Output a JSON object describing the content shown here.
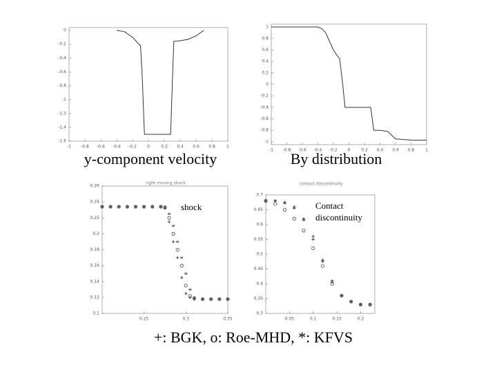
{
  "chart_data": [
    {
      "type": "line",
      "title": "y-component velocity",
      "color": "#333",
      "x": [
        -0.4,
        -0.3,
        -0.2,
        -0.12,
        -0.1,
        -0.08,
        -0.05,
        0,
        0.1,
        0.2,
        0.28,
        0.3,
        0.32,
        0.4,
        0.5,
        0.6,
        0.7
      ],
      "values": [
        0,
        -0.02,
        -0.1,
        -0.2,
        -0.22,
        -0.6,
        -1.5,
        -1.5,
        -1.5,
        -1.5,
        -1.5,
        -0.8,
        -0.16,
        -0.15,
        -0.13,
        -0.08,
        0
      ],
      "xlim": [
        -1,
        1
      ],
      "xticks": [
        -1,
        -0.8,
        -0.6,
        -0.4,
        -0.2,
        0,
        0.2,
        0.4,
        0.6,
        0.8,
        1
      ],
      "ylim": [
        -1.6,
        0.04
      ],
      "yticks": [
        0,
        -0.2,
        -0.4,
        -0.6,
        -0.8,
        -1,
        -1.2,
        -1.4,
        -1.6
      ]
    },
    {
      "type": "line",
      "title": "By distribution",
      "color": "#333",
      "x": [
        -1,
        -0.4,
        -0.35,
        -0.3,
        -0.2,
        -0.15,
        -0.12,
        -0.08,
        -0.05,
        0,
        0.1,
        0.2,
        0.28,
        0.3,
        0.32,
        0.4,
        0.5,
        0.6,
        0.8,
        1
      ],
      "values": [
        1,
        1,
        0.97,
        0.9,
        0.6,
        0.5,
        0.45,
        0,
        -0.4,
        -0.4,
        -0.4,
        -0.4,
        -0.4,
        -0.6,
        -0.8,
        -0.8,
        -0.82,
        -0.95,
        -0.97,
        -0.97
      ],
      "xlim": [
        -1,
        1
      ],
      "xticks": [
        -1,
        -0.8,
        -0.6,
        -0.4,
        -0.2,
        0,
        0.2,
        0.4,
        0.6,
        0.8,
        1
      ],
      "ylim": [
        -1.05,
        1.05
      ],
      "yticks": [
        1,
        0.8,
        0.6,
        0.4,
        0.2,
        0,
        -0.2,
        -0.4,
        -0.6,
        -0.8,
        -1
      ]
    },
    {
      "type": "scatter",
      "title": "right moving shock",
      "annotation": "shock",
      "x": [
        0.2,
        0.21,
        0.22,
        0.23,
        0.24,
        0.25,
        0.26,
        0.27,
        0.275,
        0.28,
        0.285,
        0.29,
        0.295,
        0.3,
        0.305,
        0.31,
        0.32,
        0.33,
        0.34,
        0.35
      ],
      "series": [
        {
          "marker": "+",
          "color": "#333",
          "values": [
            0.234,
            0.234,
            0.234,
            0.234,
            0.234,
            0.234,
            0.234,
            0.234,
            0.232,
            0.215,
            0.19,
            0.17,
            0.145,
            0.125,
            0.12,
            0.118,
            0.118,
            0.118,
            0.118,
            0.118
          ]
        },
        {
          "marker": "o",
          "color": "#444",
          "values": [
            0.234,
            0.234,
            0.234,
            0.234,
            0.234,
            0.234,
            0.234,
            0.234,
            0.233,
            0.22,
            0.2,
            0.18,
            0.16,
            0.135,
            0.122,
            0.119,
            0.118,
            0.118,
            0.118,
            0.118
          ]
        },
        {
          "marker": "*",
          "color": "#555",
          "values": [
            0.234,
            0.234,
            0.234,
            0.234,
            0.234,
            0.234,
            0.234,
            0.234,
            0.234,
            0.225,
            0.21,
            0.19,
            0.17,
            0.15,
            0.13,
            0.12,
            0.118,
            0.118,
            0.118,
            0.118
          ]
        }
      ],
      "xlim": [
        0.2,
        0.35
      ],
      "xticks": [
        0.25,
        0.3,
        0.35
      ],
      "ylim": [
        0.1,
        0.26
      ],
      "yticks": [
        0.26,
        0.24,
        0.22,
        0.2,
        0.18,
        0.16,
        0.14,
        0.12,
        0.1
      ]
    },
    {
      "type": "scatter",
      "title": "contact discontinuity",
      "annotation": "Contact discontinuity",
      "x": [
        0,
        0.02,
        0.04,
        0.06,
        0.08,
        0.1,
        0.12,
        0.14,
        0.16,
        0.18,
        0.2,
        0.22
      ],
      "series": [
        {
          "marker": "+",
          "color": "#333",
          "values": [
            0.68,
            0.68,
            0.675,
            0.66,
            0.62,
            0.56,
            0.48,
            0.41,
            0.36,
            0.34,
            0.33,
            0.33
          ]
        },
        {
          "marker": "o",
          "color": "#444",
          "values": [
            0.68,
            0.67,
            0.65,
            0.62,
            0.58,
            0.52,
            0.46,
            0.4,
            0.36,
            0.34,
            0.33,
            0.33
          ]
        },
        {
          "marker": "*",
          "color": "#555",
          "values": [
            0.68,
            0.68,
            0.672,
            0.655,
            0.615,
            0.55,
            0.475,
            0.405,
            0.36,
            0.34,
            0.33,
            0.33
          ]
        }
      ],
      "xlim": [
        0,
        0.23
      ],
      "xticks": [
        0.05,
        0.1,
        0.15,
        0.2
      ],
      "ylim": [
        0.3,
        0.7
      ],
      "yticks": [
        0.7,
        0.65,
        0.6,
        0.55,
        0.5,
        0.45,
        0.4,
        0.35,
        0.3
      ]
    }
  ],
  "caption": "+: BGK, o: Roe-MHD, *: KFVS"
}
